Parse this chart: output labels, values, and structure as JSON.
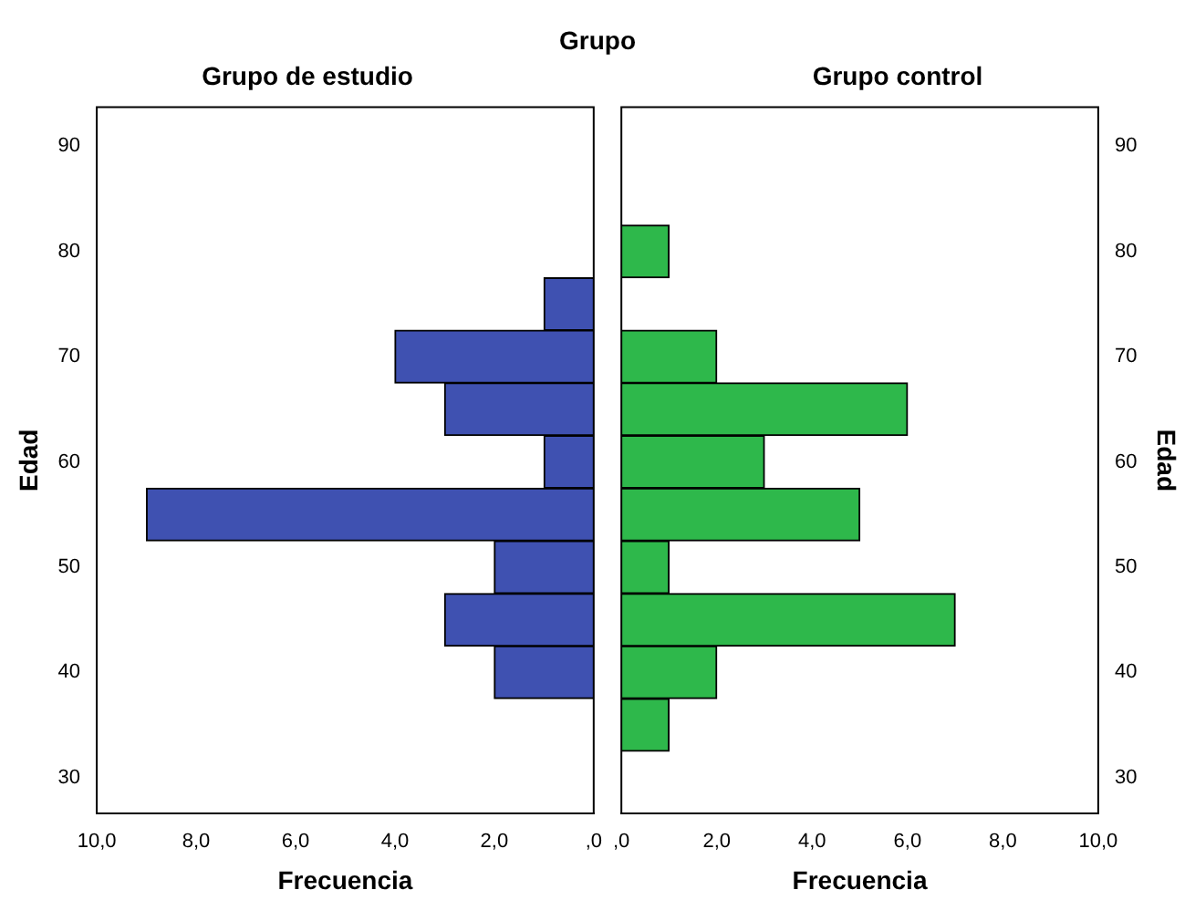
{
  "chart_data": [
    {
      "type": "histogram",
      "orientation": "horizontal",
      "title": "Grupo",
      "subtitle": "Grupo de estudio",
      "xlabel": "Frecuencia",
      "ylabel": "Edad",
      "bins": [
        32.5,
        37.5,
        42.5,
        47.5,
        52.5,
        57.5,
        62.5,
        67.5,
        72.5,
        77.5,
        82.5
      ],
      "values": [
        0,
        2,
        3,
        2,
        9,
        1,
        3,
        4,
        1,
        0
      ],
      "color": "#3f51b1",
      "xlim": [
        10,
        0
      ],
      "xticks": [
        {
          "value": 10,
          "label": "10,0"
        },
        {
          "value": 8,
          "label": "8,0"
        },
        {
          "value": 6,
          "label": "6,0"
        },
        {
          "value": 4,
          "label": "4,0"
        },
        {
          "value": 2,
          "label": "2,0"
        },
        {
          "value": 0,
          "label": ",0"
        }
      ],
      "ylim": [
        26.6,
        93.7
      ],
      "yticks": [
        30,
        40,
        50,
        60,
        70,
        80,
        90
      ],
      "grid": false
    },
    {
      "type": "histogram",
      "orientation": "horizontal",
      "subtitle": "Grupo control",
      "xlabel": "Frecuencia",
      "ylabel": "Edad",
      "bins": [
        32.5,
        37.5,
        42.5,
        47.5,
        52.5,
        57.5,
        62.5,
        67.5,
        72.5,
        77.5,
        82.5
      ],
      "values": [
        1,
        2,
        7,
        1,
        5,
        3,
        6,
        2,
        0,
        1
      ],
      "color": "#2eb84b",
      "xlim": [
        0,
        10
      ],
      "xticks": [
        {
          "value": 0,
          "label": ",0"
        },
        {
          "value": 2,
          "label": "2,0"
        },
        {
          "value": 4,
          "label": "4,0"
        },
        {
          "value": 6,
          "label": "6,0"
        },
        {
          "value": 8,
          "label": "8,0"
        },
        {
          "value": 10,
          "label": "10,0"
        }
      ],
      "ylim": [
        26.6,
        93.7
      ],
      "yticks": [
        30,
        40,
        50,
        60,
        70,
        80,
        90
      ],
      "grid": false
    }
  ]
}
